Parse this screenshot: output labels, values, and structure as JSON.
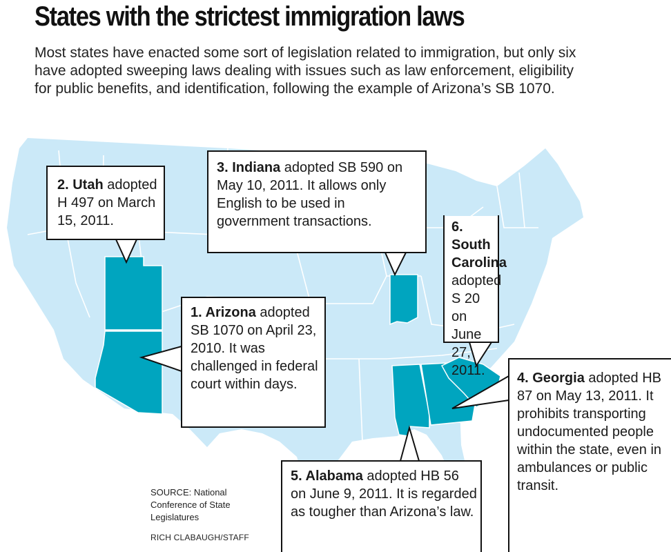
{
  "title": "States with the strictest immigration laws",
  "dek": "Most states have enacted some sort of legislation related to immigration, but only six have adopted sweeping laws dealing with issues such as law enforcement, eligibility for public benefits, and identification, following the example of Arizona’s SB 1070.",
  "colors": {
    "land": "#cbe9f8",
    "state_borders": "#ffffff",
    "highlight": "#00a5bf",
    "callout_border": "#111111"
  },
  "highlighted_states": [
    "Arizona",
    "Utah",
    "Indiana",
    "Alabama",
    "Georgia",
    "South Carolina"
  ],
  "callouts": {
    "utah": {
      "name": "2. Utah",
      "text": " adopted H 497 on March 15, 2011."
    },
    "indiana": {
      "name": "3. Indiana",
      "text": " adopted SB 590 on May 10, 2011. It allows only English to be used in government transactions."
    },
    "south_carolina": {
      "name": "6. South Carolina",
      "text": " adopted S 20 on June 27, 2011."
    },
    "arizona": {
      "name": "1. Arizona",
      "text": " adopted SB 1070 on April 23, 2010. It was challenged in federal court within days."
    },
    "georgia": {
      "name": "4. Georgia",
      "text": " adopted HB 87 on May 13, 2011. It prohibits transporting undocumented people within the state, even in ambulances or public transit."
    },
    "alabama": {
      "name": "5. Alabama",
      "text": " adopted HB 56 on June 9, 2011. It is regarded as tougher than Arizona’s law."
    }
  },
  "source": "SOURCE:  National Conference of State Legislatures",
  "credit": "RICH CLABAUGH/STAFF"
}
